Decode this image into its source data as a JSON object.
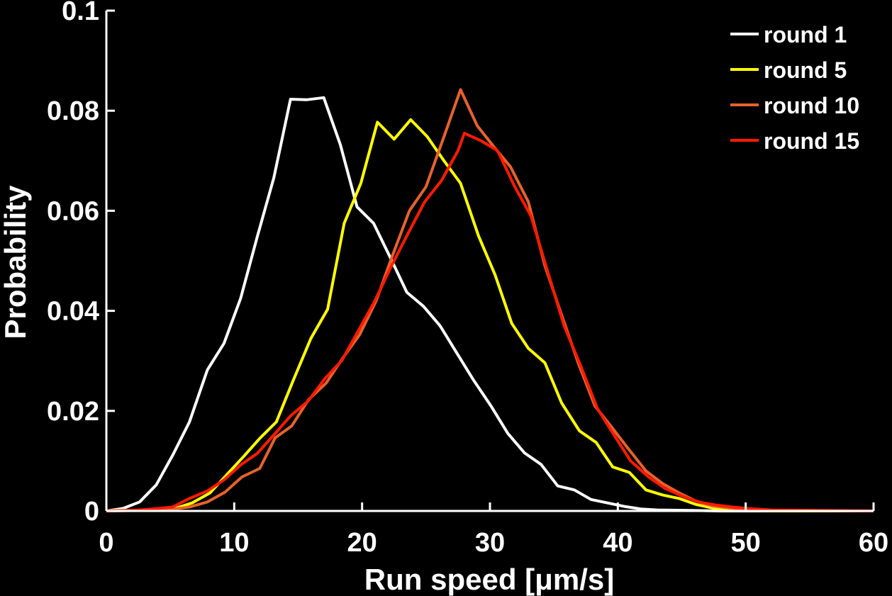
{
  "chart_data": {
    "type": "line",
    "xlabel": "Run speed [μm/s]",
    "ylabel": "Probability",
    "xlim": [
      0,
      60
    ],
    "ylim": [
      0,
      0.1
    ],
    "x_ticks": [
      0,
      10,
      20,
      30,
      40,
      50,
      60
    ],
    "x_tick_labels": [
      "0",
      "10",
      "20",
      "30",
      "40",
      "50",
      "60"
    ],
    "y_ticks": [
      0,
      0.02,
      0.04,
      0.06,
      0.08,
      0.1
    ],
    "y_tick_labels": [
      "0",
      "0.02",
      "0.04",
      "0.06",
      "0.08",
      "0.1"
    ],
    "grid": false,
    "legend_position": "top-right",
    "series": [
      {
        "name": "round 1",
        "color": "#ffffff",
        "points": [
          [
            0,
            0
          ],
          [
            1.3,
            0.0005
          ],
          [
            2.6,
            0.0018
          ],
          [
            3.9,
            0.0052
          ],
          [
            5.2,
            0.0112
          ],
          [
            6.5,
            0.0178
          ],
          [
            7.9,
            0.0282
          ],
          [
            9.2,
            0.0335
          ],
          [
            10.5,
            0.0425
          ],
          [
            11.8,
            0.0548
          ],
          [
            13.1,
            0.0666
          ],
          [
            14.4,
            0.0823
          ],
          [
            15.7,
            0.0822
          ],
          [
            17.0,
            0.0826
          ],
          [
            18.3,
            0.0732
          ],
          [
            19.6,
            0.0608
          ],
          [
            20.9,
            0.0575
          ],
          [
            22.2,
            0.0507
          ],
          [
            23.5,
            0.0437
          ],
          [
            24.8,
            0.0409
          ],
          [
            26.1,
            0.037
          ],
          [
            27.4,
            0.0316
          ],
          [
            28.7,
            0.0262
          ],
          [
            30.1,
            0.0209
          ],
          [
            31.4,
            0.0155
          ],
          [
            32.7,
            0.0116
          ],
          [
            34.0,
            0.0093
          ],
          [
            35.3,
            0.005
          ],
          [
            36.6,
            0.0042
          ],
          [
            37.9,
            0.0023
          ],
          [
            39.2,
            0.0016
          ],
          [
            40.5,
            0.0009
          ],
          [
            41.8,
            0.0004
          ],
          [
            43.1,
            0.0002
          ],
          [
            45.7,
            0.0001
          ],
          [
            48.0,
            0
          ],
          [
            60,
            0
          ]
        ]
      },
      {
        "name": "round 5",
        "color": "#ffff00",
        "points": [
          [
            0,
            0
          ],
          [
            3.0,
            0.0002
          ],
          [
            5.5,
            0.0006
          ],
          [
            6.7,
            0.0016
          ],
          [
            8.1,
            0.0036
          ],
          [
            9.4,
            0.0072
          ],
          [
            10.7,
            0.0108
          ],
          [
            12.0,
            0.0145
          ],
          [
            13.3,
            0.0178
          ],
          [
            14.6,
            0.026
          ],
          [
            16.0,
            0.0345
          ],
          [
            17.3,
            0.0403
          ],
          [
            18.6,
            0.0575
          ],
          [
            19.9,
            0.0655
          ],
          [
            21.2,
            0.0777
          ],
          [
            22.5,
            0.0743
          ],
          [
            23.8,
            0.0782
          ],
          [
            25.1,
            0.0748
          ],
          [
            26.4,
            0.07
          ],
          [
            27.7,
            0.0655
          ],
          [
            29.1,
            0.055
          ],
          [
            30.4,
            0.0472
          ],
          [
            31.7,
            0.0375
          ],
          [
            33.0,
            0.0325
          ],
          [
            34.3,
            0.0296
          ],
          [
            35.6,
            0.0216
          ],
          [
            37.0,
            0.016
          ],
          [
            38.3,
            0.0137
          ],
          [
            39.6,
            0.0088
          ],
          [
            40.9,
            0.0077
          ],
          [
            42.2,
            0.0042
          ],
          [
            43.5,
            0.0032
          ],
          [
            44.8,
            0.0025
          ],
          [
            46.1,
            0.0013
          ],
          [
            47.4,
            0.0006
          ],
          [
            48.7,
            0.0003
          ],
          [
            50.0,
            0.0001
          ],
          [
            52.0,
            0
          ],
          [
            60,
            0
          ]
        ]
      },
      {
        "name": "round 10",
        "color": "#e8622a",
        "points": [
          [
            0,
            0
          ],
          [
            3.0,
            0.0001
          ],
          [
            5.0,
            0.0003
          ],
          [
            6.5,
            0.0008
          ],
          [
            7.9,
            0.0018
          ],
          [
            9.3,
            0.0038
          ],
          [
            10.6,
            0.0068
          ],
          [
            12.0,
            0.0085
          ],
          [
            13.2,
            0.0146
          ],
          [
            14.5,
            0.017
          ],
          [
            15.8,
            0.0222
          ],
          [
            17.2,
            0.0256
          ],
          [
            18.5,
            0.0306
          ],
          [
            19.8,
            0.0352
          ],
          [
            21.1,
            0.042
          ],
          [
            22.4,
            0.0512
          ],
          [
            23.7,
            0.06
          ],
          [
            25.0,
            0.0648
          ],
          [
            26.4,
            0.0748
          ],
          [
            27.7,
            0.0842
          ],
          [
            29.0,
            0.077
          ],
          [
            30.3,
            0.0728
          ],
          [
            31.6,
            0.0688
          ],
          [
            33.0,
            0.0618
          ],
          [
            34.3,
            0.049
          ],
          [
            35.6,
            0.0392
          ],
          [
            36.9,
            0.0296
          ],
          [
            38.2,
            0.021
          ],
          [
            39.5,
            0.0168
          ],
          [
            40.8,
            0.0125
          ],
          [
            42.2,
            0.008
          ],
          [
            43.5,
            0.0055
          ],
          [
            44.8,
            0.0036
          ],
          [
            46.1,
            0.002
          ],
          [
            47.4,
            0.001
          ],
          [
            48.7,
            0.0006
          ],
          [
            50.0,
            0.0003
          ],
          [
            52.0,
            0.0001
          ],
          [
            60,
            0
          ]
        ]
      },
      {
        "name": "round 15",
        "color": "#ff1a00",
        "points": [
          [
            0,
            0
          ],
          [
            2.5,
            0.0002
          ],
          [
            4.0,
            0.0005
          ],
          [
            5.2,
            0.0008
          ],
          [
            6.5,
            0.0025
          ],
          [
            7.9,
            0.004
          ],
          [
            9.2,
            0.0062
          ],
          [
            10.5,
            0.0092
          ],
          [
            11.8,
            0.0115
          ],
          [
            13.1,
            0.0152
          ],
          [
            14.4,
            0.019
          ],
          [
            15.8,
            0.022
          ],
          [
            17.1,
            0.0265
          ],
          [
            18.4,
            0.03
          ],
          [
            19.7,
            0.036
          ],
          [
            21.0,
            0.042
          ],
          [
            22.3,
            0.049
          ],
          [
            23.6,
            0.0555
          ],
          [
            24.9,
            0.0618
          ],
          [
            26.2,
            0.066
          ],
          [
            27.5,
            0.072
          ],
          [
            28.0,
            0.0755
          ],
          [
            29.3,
            0.074
          ],
          [
            30.6,
            0.072
          ],
          [
            31.9,
            0.065
          ],
          [
            33.2,
            0.059
          ],
          [
            34.5,
            0.048
          ],
          [
            35.8,
            0.037
          ],
          [
            37.1,
            0.029
          ],
          [
            38.4,
            0.0205
          ],
          [
            39.7,
            0.0152
          ],
          [
            41.0,
            0.01
          ],
          [
            42.4,
            0.0068
          ],
          [
            43.7,
            0.0045
          ],
          [
            45.0,
            0.003
          ],
          [
            46.3,
            0.0018
          ],
          [
            47.6,
            0.0012
          ],
          [
            48.9,
            0.0008
          ],
          [
            50.2,
            0.0005
          ],
          [
            52.0,
            0.0002
          ],
          [
            60,
            0
          ]
        ]
      }
    ]
  }
}
